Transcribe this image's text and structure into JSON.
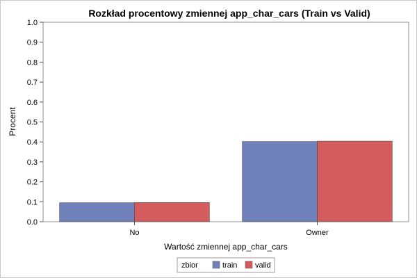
{
  "chart_data": {
    "type": "bar",
    "title": "Rozkład procentowy zmiennej app_char_cars (Train vs Valid)",
    "xlabel": "Wartość zmiennej app_char_cars",
    "ylabel": "Procent",
    "categories": [
      "No",
      "Owner"
    ],
    "series": [
      {
        "name": "train",
        "values": [
          0.095,
          0.402
        ],
        "color": "#7080b8"
      },
      {
        "name": "valid",
        "values": [
          0.096,
          0.404
        ],
        "color": "#d45c5c"
      }
    ],
    "ylim": [
      0,
      1.0
    ],
    "yticks": [
      "0.0",
      "0.1",
      "0.2",
      "0.3",
      "0.4",
      "0.5",
      "0.6",
      "0.7",
      "0.8",
      "0.9",
      "1.0"
    ],
    "grid": false,
    "legend": {
      "title": "zbior",
      "placement": "bottom-center"
    }
  }
}
